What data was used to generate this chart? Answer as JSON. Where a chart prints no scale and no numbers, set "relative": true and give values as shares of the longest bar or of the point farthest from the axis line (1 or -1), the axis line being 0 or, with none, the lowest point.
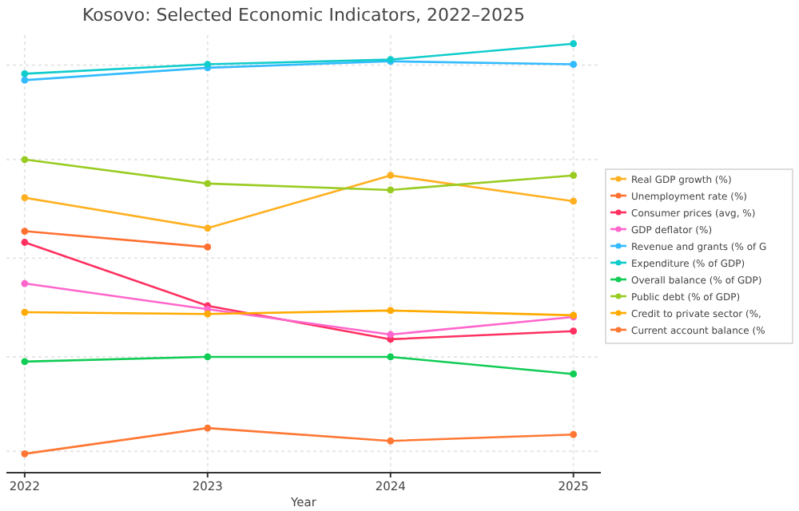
{
  "chart_data": {
    "type": "line",
    "title": "Kosovo: Selected Economic Indicators, 2022–2025",
    "xlabel": "Year",
    "x": [
      2022,
      2023,
      2024,
      2025
    ],
    "xlim": [
      2021.9,
      2025.15
    ],
    "xticks": [
      2022,
      2023,
      2024,
      2025
    ],
    "relative": true,
    "grid": true,
    "legend": "right",
    "marker": "circle",
    "line_style": "solid",
    "series": [
      {
        "name": "Real GDP growth (%)",
        "color": "#ffb020",
        "values": [
          0.641,
          0.57,
          0.693,
          0.633
        ]
      },
      {
        "name": "Unemployment rate (%)",
        "color": "#ff7030",
        "values": [
          0.563,
          0.526,
          null,
          null
        ]
      },
      {
        "name": "Consumer prices (avg, %)",
        "color": "#ff3060",
        "values": [
          0.537,
          0.389,
          0.311,
          0.33
        ]
      },
      {
        "name": "GDP deflator (%)",
        "color": "#ff66cc",
        "values": [
          0.441,
          0.381,
          0.322,
          0.363
        ]
      },
      {
        "name": "Revenue and grants (% of G",
        "color": "#33bbff",
        "values": [
          0.915,
          0.944,
          0.959,
          0.952
        ]
      },
      {
        "name": "Expenditure (% of GDP)",
        "color": "#11cccc",
        "values": [
          0.93,
          0.952,
          0.963,
          1
        ]
      },
      {
        "name": "Overall balance (% of GDP)",
        "color": "#11cc55",
        "values": [
          0.259,
          0.27,
          0.27,
          0.23
        ]
      },
      {
        "name": "Public debt (% of GDP)",
        "color": "#99cc22",
        "values": [
          0.73,
          0.674,
          0.659,
          0.693
        ]
      },
      {
        "name": "Credit to private sector (%,",
        "color": "#ffaa00",
        "values": [
          0.374,
          0.37,
          0.378,
          0.367
        ]
      },
      {
        "name": "Current account balance (%",
        "color": "#ff7733",
        "values": [
          0.044,
          0.104,
          0.074,
          0.089
        ]
      }
    ]
  }
}
